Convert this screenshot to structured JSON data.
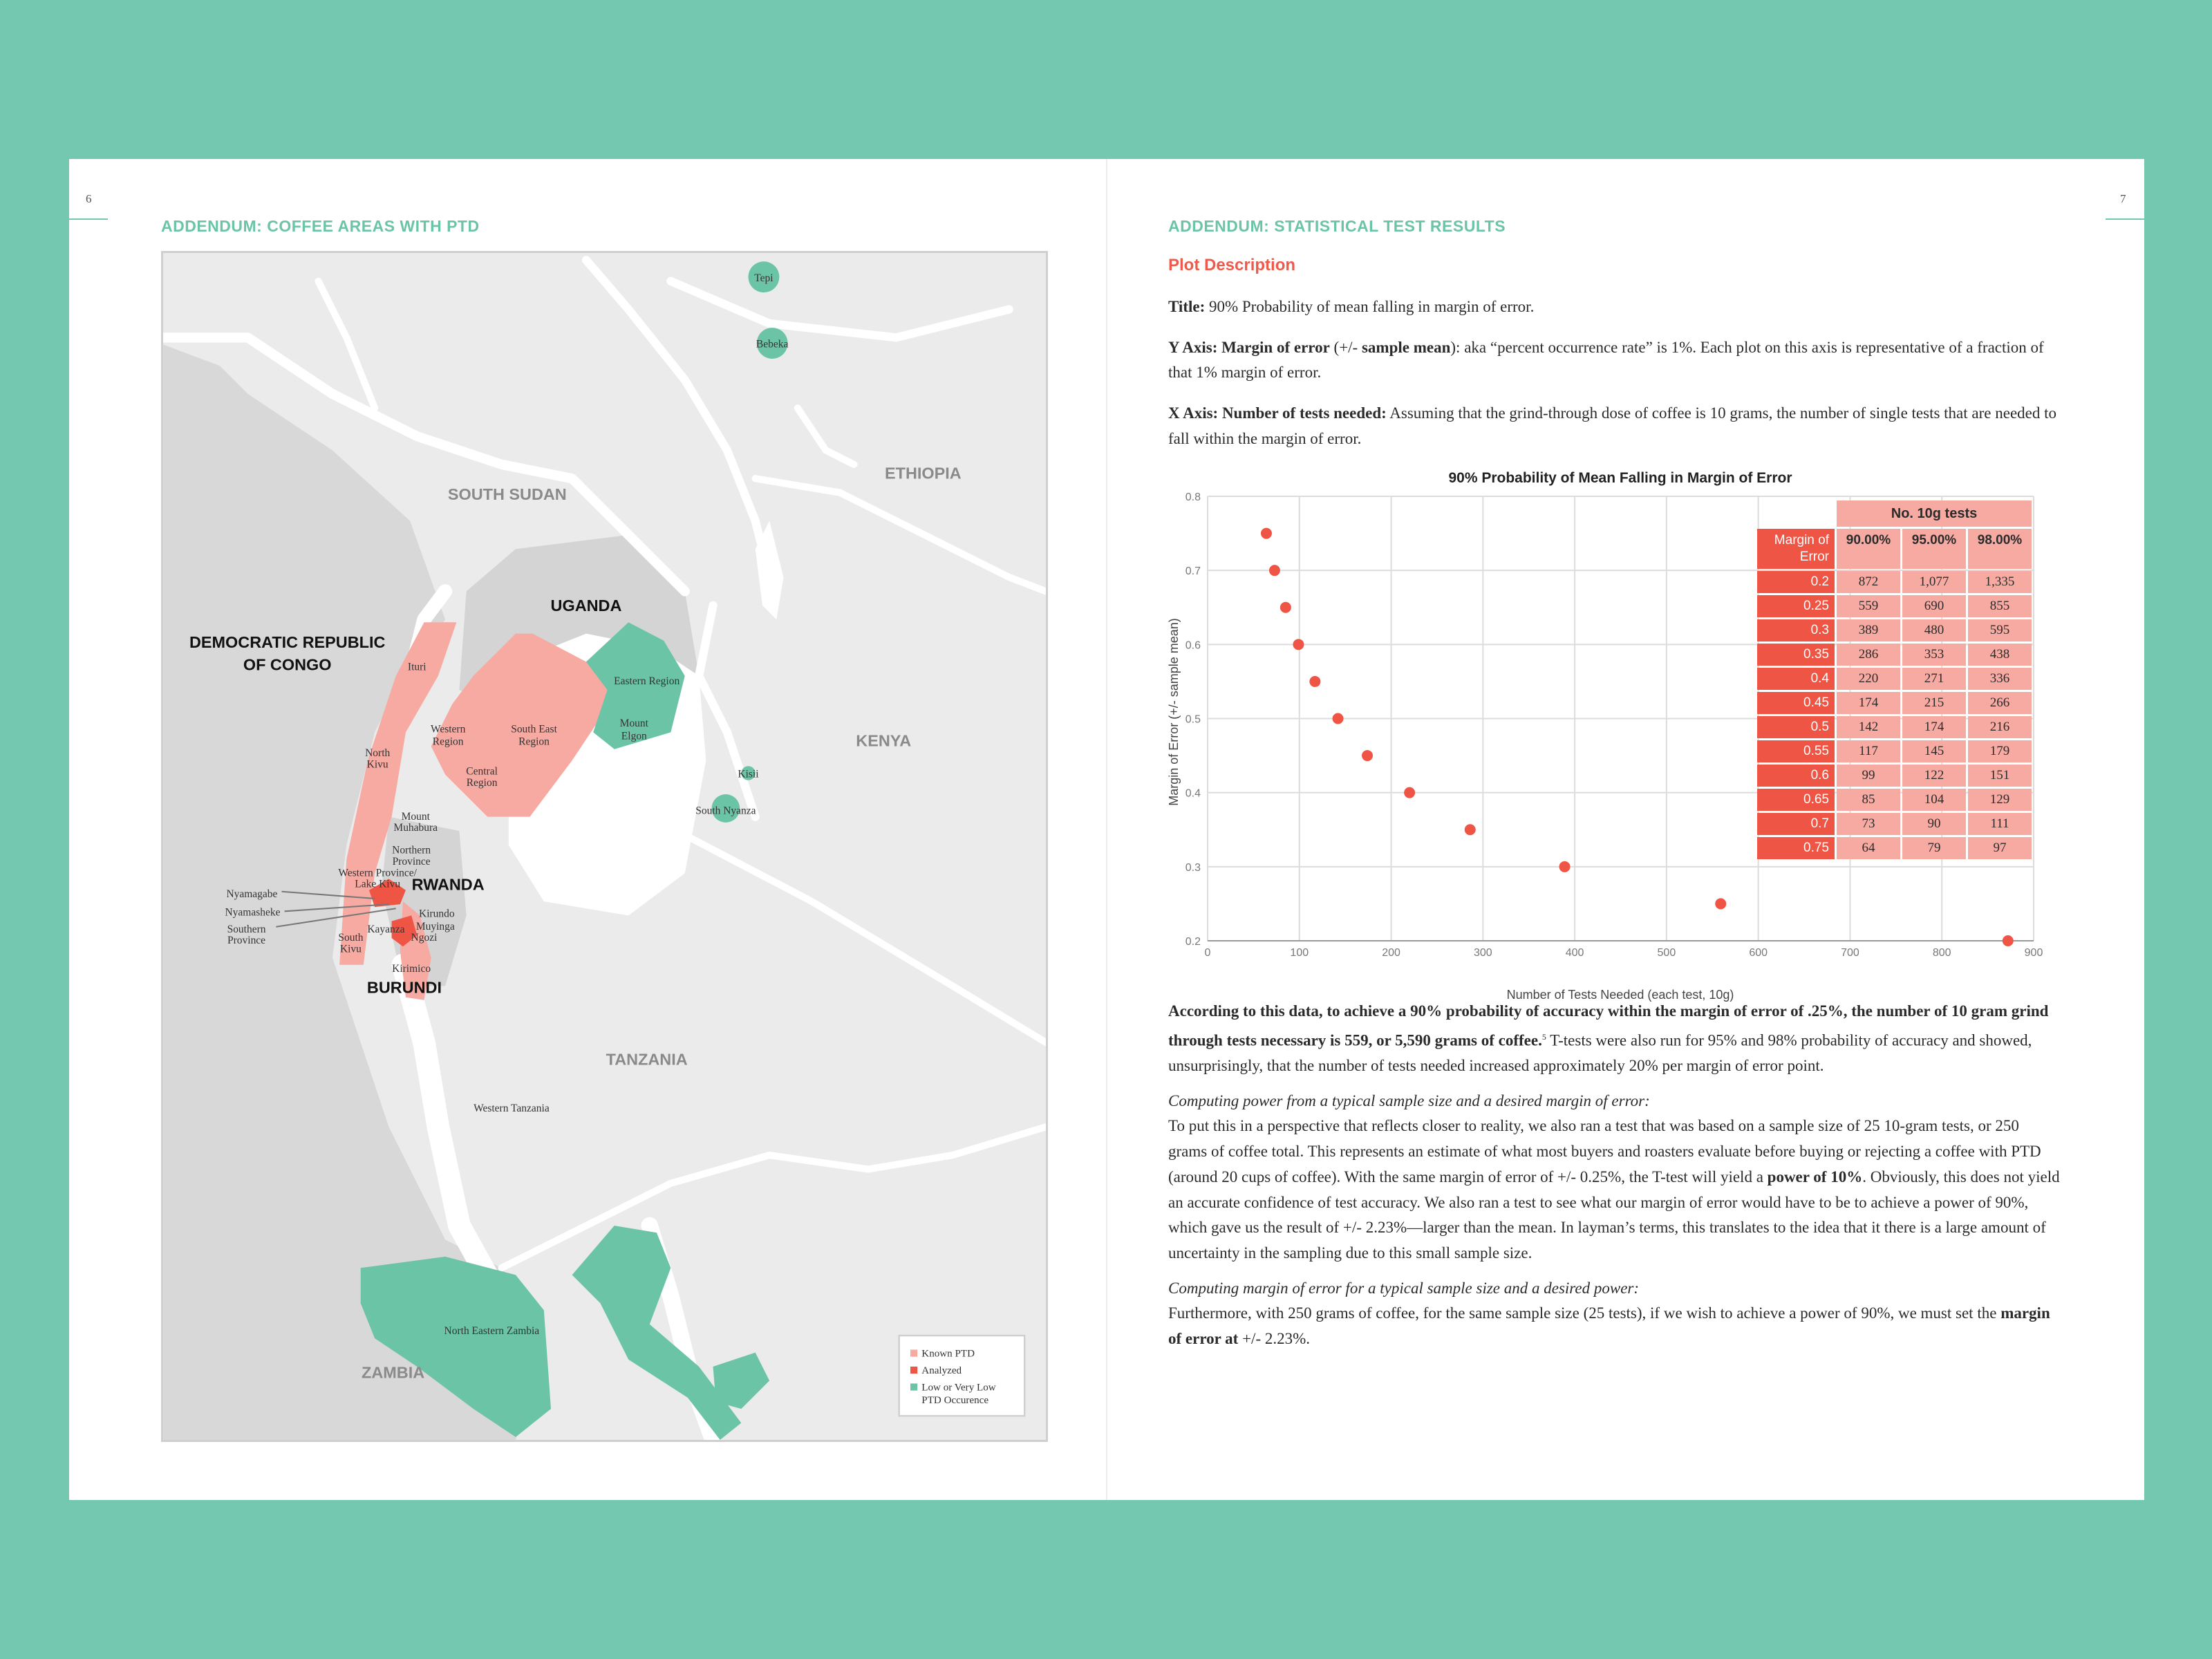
{
  "left_page": {
    "page_number": "6",
    "heading": "ADDENDUM: COFFEE AREAS WITH PTD",
    "map": {
      "countries": [
        "SOUTH SUDAN",
        "ETHIOPIA",
        "UGANDA",
        "DEMOCRATIC REPUBLIC",
        "OF CONGO",
        "KENYA",
        "RWANDA",
        "BURUNDI",
        "TANZANIA",
        "ZAMBIA"
      ],
      "labels": [
        {
          "lines": [
            "Tepi"
          ]
        },
        {
          "lines": [
            "Bebeka"
          ]
        },
        {
          "lines": [
            "Ituri"
          ]
        },
        {
          "lines": [
            "Eastern Region"
          ]
        },
        {
          "lines": [
            "Western",
            "Region"
          ]
        },
        {
          "lines": [
            "South East",
            "Region"
          ]
        },
        {
          "lines": [
            "Mount",
            "Elgon"
          ]
        },
        {
          "lines": [
            "North",
            "Kivu"
          ]
        },
        {
          "lines": [
            "Central",
            "Region"
          ]
        },
        {
          "lines": [
            "Kisii"
          ]
        },
        {
          "lines": [
            "South Nyanza"
          ]
        },
        {
          "lines": [
            "Mount",
            "Muhabura"
          ]
        },
        {
          "lines": [
            "Northern",
            "Province"
          ]
        },
        {
          "lines": [
            "Western Province/",
            "Lake Kivu"
          ]
        },
        {
          "lines": [
            "Nyamagabe"
          ]
        },
        {
          "lines": [
            "Nyamasheke"
          ]
        },
        {
          "lines": [
            "Southern",
            "Province"
          ]
        },
        {
          "lines": [
            "Kirundo"
          ]
        },
        {
          "lines": [
            "Muyinga"
          ]
        },
        {
          "lines": [
            "Ngozi"
          ]
        },
        {
          "lines": [
            "Kayanza"
          ]
        },
        {
          "lines": [
            "South",
            "Kivu"
          ]
        },
        {
          "lines": [
            "Kirimico"
          ]
        },
        {
          "lines": [
            "Western Tanzania"
          ]
        },
        {
          "lines": [
            "North Eastern Zambia"
          ]
        }
      ],
      "legend": [
        {
          "label": "Known PTD",
          "color": "#f6aaa2"
        },
        {
          "label": "Analyzed",
          "color": "#ef5545"
        },
        {
          "label": "Low or Very Low",
          "label2": "PTD Occurence",
          "color": "#6cc4a7"
        }
      ]
    }
  },
  "right_page": {
    "page_number": "7",
    "heading": "ADDENDUM: STATISTICAL TEST RESULTS",
    "plot_description": "Plot Description",
    "title_label": "Title:",
    "title_text": " 90% Probability of mean falling in margin of error.",
    "y_axis_label": "Y Axis: Margin of error",
    "y_axis_paren": " (+/- ",
    "y_axis_label2": "sample mean",
    "y_axis_paren2": "):",
    "y_axis_text": " aka “percent occurrence rate” is 1%. Each plot on this axis is representative of a fraction of that 1% margin of error.",
    "x_axis_label": "X Axis: Number of tests needed:",
    "x_axis_text": " Assuming that the grind-through dose of coffee is 10 grams, the number of single tests that are needed to fall within the margin of error.",
    "para1_bold": "According to this data, to achieve a 90% probability of accuracy within the margin of error of .25%, the number of 10 gram grind through tests necessary is 559, or 5,590 grams of coffee.",
    "para1_sup": "5",
    "para1_text": " T-tests were also run for 95% and 98% probability of accuracy and showed, unsurprisingly, that the number of tests needed increased approximately 20% per margin of error point.",
    "para2_heading": "Computing power from a typical sample size and a desired margin of error:",
    "para2_text1": "To put this in a perspective that reflects closer to reality, we also ran a test that was based on a sample size of 25 10-gram tests, or 250 grams of coffee total. This represents an estimate of what most buyers and roasters evaluate before buying or rejecting a coffee with PTD (around 20 cups of coffee). With the same margin of error of +/- 0.25%, the T-test will yield a ",
    "para2_bold": "power of 10%",
    "para2_text2": ". Obviously, this does not yield an accurate confidence of test accuracy. We also ran a test to see what our margin of error would have to be to achieve a power of 90%, which gave us the result of +/- 2.23%—larger than the mean. In layman’s terms, this translates to the idea that it there is a large amount of uncertainty in the sampling due to this small sample size.",
    "para3_heading": "Computing margin of error for a typical sample size and a desired power:",
    "para3_text1": "Furthermore, with 250 grams of coffee, for the same sample size (25 tests), if we wish to achieve a power of 90%, we must set the ",
    "para3_bold": "margin of error at",
    "para3_text2": " +/- 2.23%."
  },
  "chart_data": {
    "type": "scatter",
    "title": "90% Probability of Mean Falling in Margin of Error",
    "xlabel": "Number of Tests Needed  (each test, 10g)",
    "ylabel": "Margin of Error  (+/- sample mean)",
    "xlim": [
      0,
      900
    ],
    "ylim": [
      0.2,
      0.8
    ],
    "xticks": [
      "0",
      "100",
      "200",
      "300",
      "400",
      "500",
      "600",
      "700",
      "800",
      "900"
    ],
    "yticks": [
      "0.2",
      "0.3",
      "0.4",
      "0.5",
      "0.6",
      "0.7",
      "0.8"
    ],
    "grid": true,
    "point_color": "#ef5545",
    "points": [
      {
        "x": 872,
        "y": 0.2
      },
      {
        "x": 559,
        "y": 0.25
      },
      {
        "x": 389,
        "y": 0.3
      },
      {
        "x": 286,
        "y": 0.35
      },
      {
        "x": 220,
        "y": 0.4
      },
      {
        "x": 174,
        "y": 0.45
      },
      {
        "x": 142,
        "y": 0.5
      },
      {
        "x": 117,
        "y": 0.55
      },
      {
        "x": 99,
        "y": 0.6
      },
      {
        "x": 85,
        "y": 0.65
      },
      {
        "x": 73,
        "y": 0.7
      },
      {
        "x": 64,
        "y": 0.75
      }
    ],
    "table": {
      "group_header": "No. 10g tests",
      "row_header": "Margin of Error",
      "columns": [
        "90.00%",
        "95.00%",
        "98.00%"
      ],
      "rows": [
        {
          "moe": "0.2",
          "v": [
            "872",
            "1,077",
            "1,335"
          ]
        },
        {
          "moe": "0.25",
          "v": [
            "559",
            "690",
            "855"
          ]
        },
        {
          "moe": "0.3",
          "v": [
            "389",
            "480",
            "595"
          ]
        },
        {
          "moe": "0.35",
          "v": [
            "286",
            "353",
            "438"
          ]
        },
        {
          "moe": "0.4",
          "v": [
            "220",
            "271",
            "336"
          ]
        },
        {
          "moe": "0.45",
          "v": [
            "174",
            "215",
            "266"
          ]
        },
        {
          "moe": "0.5",
          "v": [
            "142",
            "174",
            "216"
          ]
        },
        {
          "moe": "0.55",
          "v": [
            "117",
            "145",
            "179"
          ]
        },
        {
          "moe": "0.6",
          "v": [
            "99",
            "122",
            "151"
          ]
        },
        {
          "moe": "0.65",
          "v": [
            "85",
            "104",
            "129"
          ]
        },
        {
          "moe": "0.7",
          "v": [
            "73",
            "90",
            "111"
          ]
        },
        {
          "moe": "0.75",
          "v": [
            "64",
            "79",
            "97"
          ]
        }
      ]
    }
  }
}
